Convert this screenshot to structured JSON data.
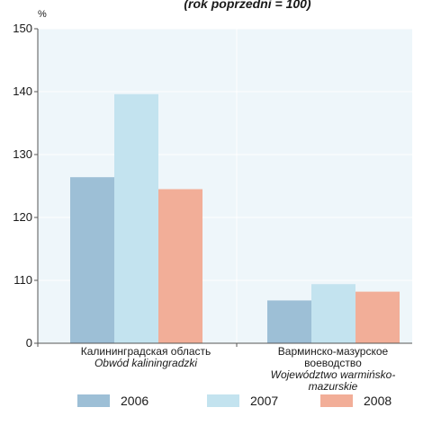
{
  "chart_data": {
    "type": "bar",
    "title": "",
    "subtitle": "(rok poprzedni  = 100)",
    "unit_label": "%",
    "ylabel": "",
    "xlabel": "",
    "y_ticks": [
      "0",
      "110",
      "120",
      "130",
      "140",
      "150"
    ],
    "y_tick_values": [
      100,
      110,
      120,
      130,
      140,
      150
    ],
    "ylim": [
      100,
      150
    ],
    "axis_break": "0 shown at baseline; axis scale 100-150",
    "grid": true,
    "legend_position": "bottom",
    "categories": [
      {
        "ru": "Калининградская область",
        "pl": "Obwód kaliningradzki"
      },
      {
        "ru": "Варминско-мазурское воеводство",
        "pl": "Województwo warmińsko-mazurskie"
      }
    ],
    "series": [
      {
        "name": "2006",
        "color": "#9dbfd6",
        "values": [
          126.4,
          106.8
        ]
      },
      {
        "name": "2007",
        "color": "#c3e3ef",
        "values": [
          139.6,
          109.4
        ]
      },
      {
        "name": "2008",
        "color": "#f2ae98",
        "values": [
          124.5,
          108.2
        ]
      }
    ],
    "colors": {
      "plot_background": "#eef6fa",
      "grid": "#ffffff",
      "axis": "#555555"
    }
  }
}
